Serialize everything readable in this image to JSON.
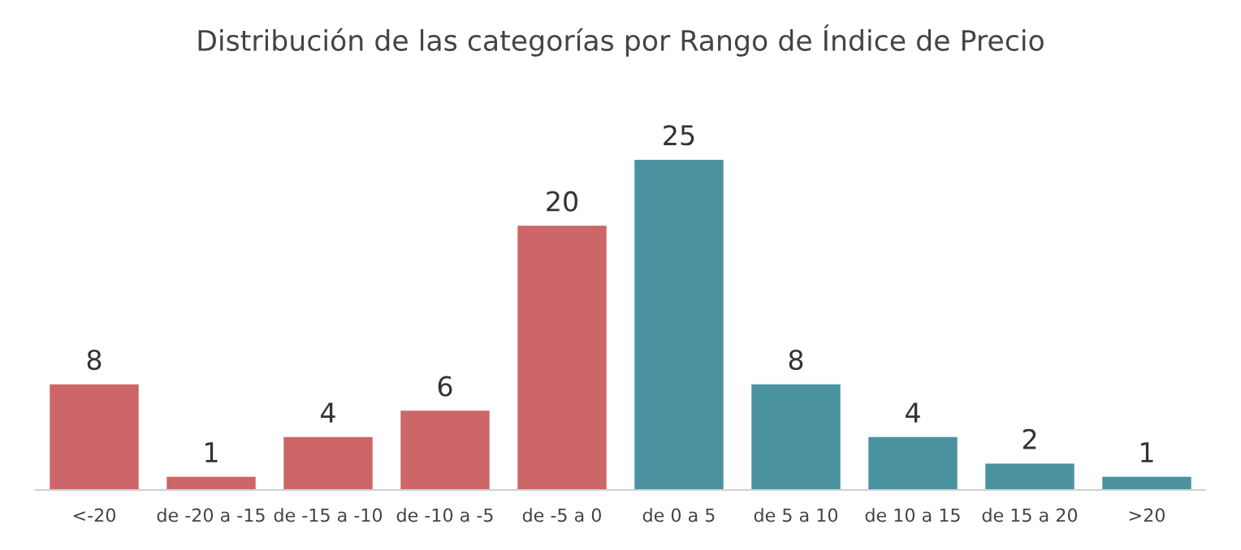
{
  "chart_data": {
    "type": "bar",
    "title": "Distribución de las categorías por Rango de Índice de Precio",
    "categories": [
      "<-20",
      "de -20 a -15",
      "de -15 a -10",
      "de -10 a -5",
      "de -5 a 0",
      "de 0 a 5",
      "de 5 a 10",
      "de 10 a 15",
      "de 15 a 20",
      ">20"
    ],
    "values": [
      8,
      1,
      4,
      6,
      20,
      25,
      8,
      4,
      2,
      1
    ],
    "colors": [
      "#cd6668",
      "#cd6668",
      "#cd6668",
      "#cd6668",
      "#cd6668",
      "#4a929f",
      "#4a929f",
      "#4a929f",
      "#4a929f",
      "#4a929f"
    ],
    "data_labels": true,
    "grid": false,
    "legend": false
  }
}
